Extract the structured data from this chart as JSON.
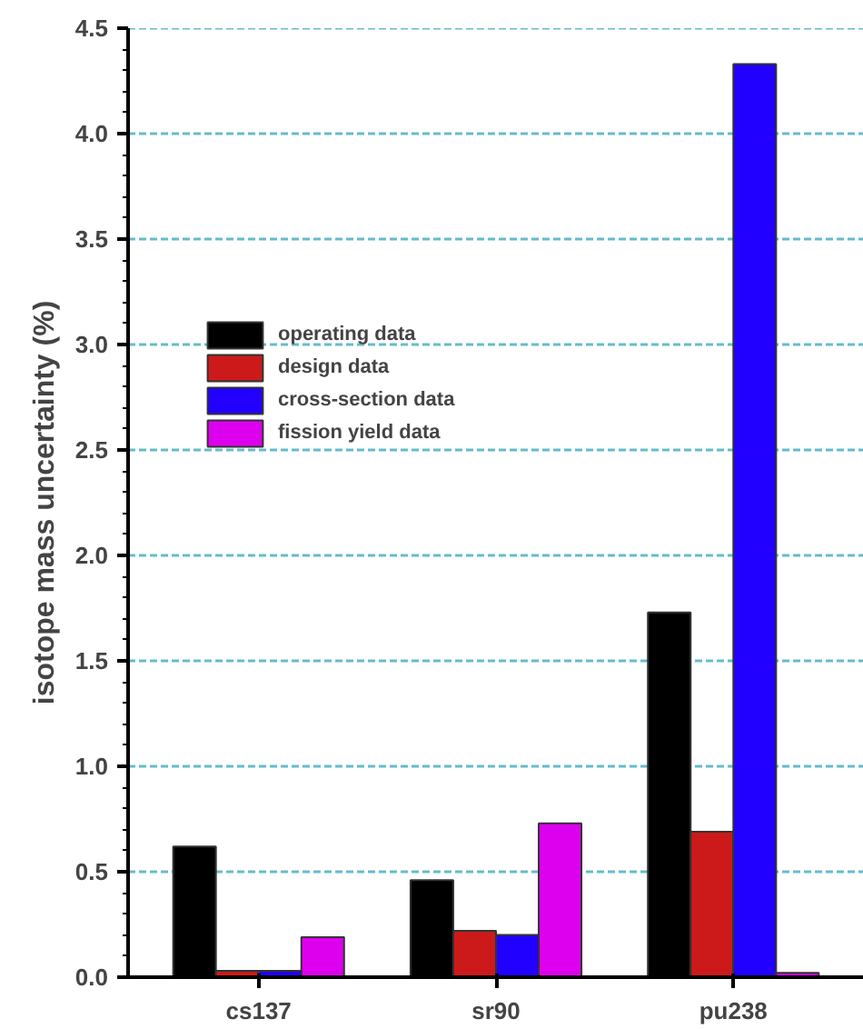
{
  "chart_data": {
    "type": "bar",
    "ylabel": "isotope mass uncertainty (%)",
    "categories": [
      "cs137",
      "sr90",
      "pu238"
    ],
    "series": [
      {
        "name": "operating data",
        "color": "#000000",
        "values": [
          0.62,
          0.46,
          1.73
        ]
      },
      {
        "name": "design data",
        "color": "#cc1a1a",
        "values": [
          0.03,
          0.22,
          0.69
        ]
      },
      {
        "name": "cross-section data",
        "color": "#2200ff",
        "values": [
          0.03,
          0.2,
          4.33
        ]
      },
      {
        "name": "fission yield data",
        "color": "#dd00ee",
        "values": [
          0.19,
          0.73,
          0.02
        ]
      }
    ],
    "ylim": [
      0,
      4.5
    ],
    "yticks": [
      {
        "value": 0,
        "label": "0.0"
      },
      {
        "value": 0.5,
        "label": "0.5"
      },
      {
        "value": 1,
        "label": "1.0"
      },
      {
        "value": 1.5,
        "label": "1.5"
      },
      {
        "value": 2,
        "label": "2.0"
      },
      {
        "value": 2.5,
        "label": "2.5"
      },
      {
        "value": 3,
        "label": "3.0"
      },
      {
        "value": 3.5,
        "label": "3.5"
      },
      {
        "value": 4,
        "label": "4.0"
      },
      {
        "value": 4.5,
        "label": "4.5"
      }
    ],
    "grid": "y",
    "legend": "top left"
  }
}
